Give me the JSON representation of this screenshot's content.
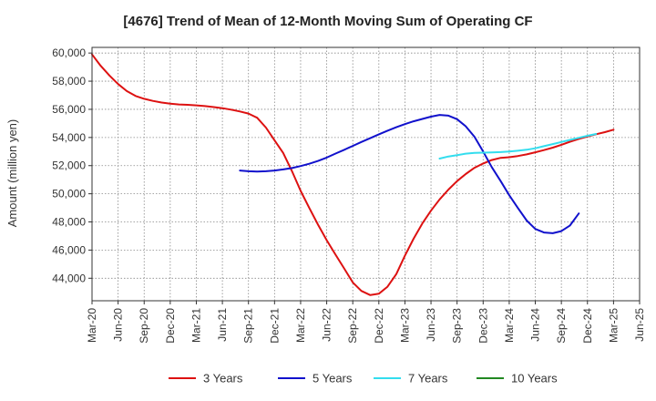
{
  "chart_data": {
    "type": "line",
    "title": "[4676]  Trend of Mean of 12-Month Moving Sum of Operating CF",
    "xlabel": "",
    "ylabel": "Amount (million yen)",
    "x_ticks": [
      "Mar-20",
      "Jun-20",
      "Sep-20",
      "Dec-20",
      "Mar-21",
      "Jun-21",
      "Sep-21",
      "Dec-21",
      "Mar-22",
      "Jun-22",
      "Sep-22",
      "Dec-22",
      "Mar-23",
      "Jun-23",
      "Sep-23",
      "Dec-23",
      "Mar-24",
      "Jun-24",
      "Sep-24",
      "Dec-24",
      "Mar-25",
      "Jun-25"
    ],
    "y_ticks": [
      44000,
      46000,
      48000,
      50000,
      52000,
      54000,
      56000,
      58000,
      60000
    ],
    "ylim": [
      42400,
      60400
    ],
    "grid": true,
    "legend_position": "bottom",
    "series": [
      {
        "name": "3 Years",
        "color": "#dd1111",
        "points": [
          [
            0,
            59900
          ],
          [
            0.33,
            59100
          ],
          [
            0.67,
            58400
          ],
          [
            1,
            57800
          ],
          [
            1.33,
            57300
          ],
          [
            1.67,
            56950
          ],
          [
            2,
            56750
          ],
          [
            2.33,
            56600
          ],
          [
            2.67,
            56480
          ],
          [
            3,
            56400
          ],
          [
            3.33,
            56350
          ],
          [
            3.67,
            56320
          ],
          [
            4,
            56280
          ],
          [
            4.33,
            56230
          ],
          [
            4.67,
            56160
          ],
          [
            5,
            56080
          ],
          [
            5.33,
            55980
          ],
          [
            5.67,
            55850
          ],
          [
            6,
            55700
          ],
          [
            6.33,
            55400
          ],
          [
            6.67,
            54700
          ],
          [
            7,
            53800
          ],
          [
            7.33,
            52900
          ],
          [
            7.67,
            51600
          ],
          [
            8,
            50200
          ],
          [
            8.33,
            49000
          ],
          [
            8.67,
            47800
          ],
          [
            9,
            46700
          ],
          [
            9.33,
            45700
          ],
          [
            9.67,
            44700
          ],
          [
            10,
            43700
          ],
          [
            10.33,
            43100
          ],
          [
            10.67,
            42800
          ],
          [
            11,
            42900
          ],
          [
            11.33,
            43400
          ],
          [
            11.67,
            44300
          ],
          [
            12,
            45600
          ],
          [
            12.33,
            46800
          ],
          [
            12.67,
            47900
          ],
          [
            13,
            48800
          ],
          [
            13.33,
            49600
          ],
          [
            13.67,
            50300
          ],
          [
            14,
            50900
          ],
          [
            14.33,
            51400
          ],
          [
            14.67,
            51850
          ],
          [
            15,
            52150
          ],
          [
            15.33,
            52400
          ],
          [
            15.67,
            52550
          ],
          [
            16,
            52600
          ],
          [
            16.33,
            52680
          ],
          [
            16.67,
            52800
          ],
          [
            17,
            52950
          ],
          [
            17.33,
            53100
          ],
          [
            17.67,
            53280
          ],
          [
            18,
            53480
          ],
          [
            18.33,
            53700
          ],
          [
            18.67,
            53900
          ],
          [
            19,
            54070
          ],
          [
            19.33,
            54230
          ],
          [
            19.67,
            54380
          ],
          [
            20,
            54550
          ]
        ]
      },
      {
        "name": "5 Years",
        "color": "#1111cc",
        "points": [
          [
            5.67,
            51650
          ],
          [
            6,
            51600
          ],
          [
            6.33,
            51580
          ],
          [
            6.67,
            51600
          ],
          [
            7,
            51650
          ],
          [
            7.33,
            51730
          ],
          [
            7.67,
            51830
          ],
          [
            8,
            51970
          ],
          [
            8.33,
            52130
          ],
          [
            8.67,
            52330
          ],
          [
            9,
            52570
          ],
          [
            9.33,
            52850
          ],
          [
            9.67,
            53120
          ],
          [
            10,
            53400
          ],
          [
            10.33,
            53680
          ],
          [
            10.67,
            53950
          ],
          [
            11,
            54220
          ],
          [
            11.33,
            54480
          ],
          [
            11.67,
            54730
          ],
          [
            12,
            54950
          ],
          [
            12.33,
            55150
          ],
          [
            12.67,
            55320
          ],
          [
            13,
            55480
          ],
          [
            13.33,
            55600
          ],
          [
            13.67,
            55550
          ],
          [
            14,
            55300
          ],
          [
            14.33,
            54800
          ],
          [
            14.67,
            54050
          ],
          [
            15,
            53000
          ],
          [
            15.33,
            51900
          ],
          [
            15.67,
            50900
          ],
          [
            16,
            49900
          ],
          [
            16.33,
            49000
          ],
          [
            16.67,
            48100
          ],
          [
            17,
            47500
          ],
          [
            17.33,
            47250
          ],
          [
            17.67,
            47200
          ],
          [
            18,
            47350
          ],
          [
            18.33,
            47750
          ],
          [
            18.67,
            48600
          ]
        ]
      },
      {
        "name": "7 Years",
        "color": "#33ddee",
        "points": [
          [
            13.33,
            52500
          ],
          [
            13.67,
            52650
          ],
          [
            14,
            52750
          ],
          [
            14.33,
            52850
          ],
          [
            14.67,
            52900
          ],
          [
            15,
            52920
          ],
          [
            15.33,
            52940
          ],
          [
            15.67,
            52960
          ],
          [
            16,
            53000
          ],
          [
            16.33,
            53060
          ],
          [
            16.67,
            53130
          ],
          [
            17,
            53230
          ],
          [
            17.33,
            53380
          ],
          [
            17.67,
            53530
          ],
          [
            18,
            53680
          ],
          [
            18.33,
            53830
          ],
          [
            18.67,
            53980
          ],
          [
            19,
            54120
          ],
          [
            19.33,
            54250
          ]
        ]
      },
      {
        "name": "10 Years",
        "color": "#228822",
        "points": []
      }
    ]
  }
}
